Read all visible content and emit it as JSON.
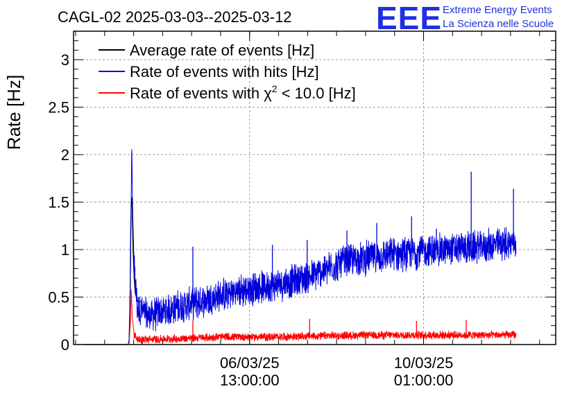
{
  "header": {
    "title": "CAGL-02 2025-03-03--2025-03-12",
    "logo_text": "EEE",
    "logo_line1": "Extreme Energy Events",
    "logo_line2": "La Scienza nelle Scuole"
  },
  "colors": {
    "average": "#000000",
    "hits": "#0000dd",
    "chi2": "#ff0000",
    "logo": "#1e2fe0",
    "grid": "#999999"
  },
  "chart_data": {
    "type": "line",
    "title": "CAGL-02 2025-03-03--2025-03-12",
    "xlabel": "",
    "ylabel": "Rate [Hz]",
    "ylim": [
      0,
      3.3
    ],
    "yticks": [
      {
        "value": 0,
        "label": "0"
      },
      {
        "value": 0.5,
        "label": "0.5"
      },
      {
        "value": 1,
        "label": "1"
      },
      {
        "value": 1.5,
        "label": "1.5"
      },
      {
        "value": 2,
        "label": "2"
      },
      {
        "value": 2.5,
        "label": "2.5"
      },
      {
        "value": 3,
        "label": "3"
      }
    ],
    "x_unit": "days since 2025-03-03 00:00",
    "xlim": [
      0,
      9.7
    ],
    "xticks": [
      {
        "value": 3.5417,
        "line1": "06/03/25",
        "line2": "13:00:00"
      },
      {
        "value": 7.0417,
        "line1": "10/03/25",
        "line2": "01:00:00"
      }
    ],
    "grid": true,
    "legend_position": "top-left",
    "legend": [
      {
        "label": "Average rate of events [Hz]",
        "key": "average"
      },
      {
        "label": "Rate of events with hits [Hz]",
        "key": "hits"
      },
      {
        "label_prefix": "Rate of events with ",
        "label_symbol": "χ",
        "label_sup": "2",
        "label_suffix": " < 10.0 [Hz]",
        "key": "chi2"
      }
    ],
    "series": [
      {
        "name": "Average rate of events [Hz]",
        "key": "average",
        "x": [
          0.2,
          1.1,
          1.12,
          1.14,
          1.15,
          1.16,
          1.17,
          1.18,
          1.19,
          1.2,
          1.22,
          1.24,
          1.27,
          1.3,
          1.35
        ],
        "y": [
          0,
          0,
          0.05,
          0.6,
          1.2,
          1.5,
          1.55,
          1.45,
          1.2,
          0.95,
          0.7,
          0.55,
          0.48,
          0.45,
          0.45
        ]
      },
      {
        "name": "Rate of events with hits [Hz]",
        "key": "hits",
        "x_start": 1.14,
        "x_end": 8.9,
        "baseline_points": [
          [
            0.2,
            0
          ],
          [
            1.1,
            0
          ],
          [
            1.12,
            0.05
          ],
          [
            1.15,
            0.9
          ],
          [
            1.17,
            2.13
          ],
          [
            1.19,
            1.4
          ],
          [
            1.22,
            0.8
          ],
          [
            1.28,
            0.4
          ],
          [
            1.5,
            0.3
          ],
          [
            2.0,
            0.38
          ],
          [
            2.5,
            0.45
          ],
          [
            3.0,
            0.52
          ],
          [
            3.5,
            0.58
          ],
          [
            4.0,
            0.62
          ],
          [
            4.5,
            0.68
          ],
          [
            4.8,
            0.72
          ],
          [
            5.2,
            0.82
          ],
          [
            5.5,
            0.88
          ],
          [
            6.0,
            0.92
          ],
          [
            6.5,
            0.95
          ],
          [
            7.0,
            0.98
          ],
          [
            7.5,
            1.0
          ],
          [
            8.0,
            1.02
          ],
          [
            8.5,
            1.05
          ],
          [
            8.9,
            1.08
          ]
        ],
        "noise_amplitude": 0.2,
        "peaks": [
          {
            "x": 1.17,
            "y": 2.13
          },
          {
            "x": 2.4,
            "y": 1.03
          },
          {
            "x": 4.0,
            "y": 1.05
          },
          {
            "x": 4.7,
            "y": 1.1
          },
          {
            "x": 5.5,
            "y": 1.2
          },
          {
            "x": 6.1,
            "y": 1.28
          },
          {
            "x": 6.8,
            "y": 1.35
          },
          {
            "x": 7.3,
            "y": 1.22
          },
          {
            "x": 8.0,
            "y": 1.82
          },
          {
            "x": 8.85,
            "y": 1.64
          }
        ]
      },
      {
        "name": "Rate of events with χ2 < 10.0 [Hz]",
        "key": "chi2",
        "baseline_points": [
          [
            0.2,
            0
          ],
          [
            1.1,
            0
          ],
          [
            1.12,
            0.02
          ],
          [
            1.15,
            0.3
          ],
          [
            1.16,
            0.58
          ],
          [
            1.18,
            0.3
          ],
          [
            1.22,
            0.1
          ],
          [
            1.3,
            0.05
          ],
          [
            2.0,
            0.06
          ],
          [
            3.0,
            0.08
          ],
          [
            4.0,
            0.08
          ],
          [
            5.0,
            0.09
          ],
          [
            6.0,
            0.1
          ],
          [
            7.0,
            0.1
          ],
          [
            8.0,
            0.1
          ],
          [
            8.9,
            0.1
          ]
        ],
        "noise_amplitude": 0.05,
        "peaks": [
          {
            "x": 1.16,
            "y": 0.58
          },
          {
            "x": 2.4,
            "y": 0.25
          },
          {
            "x": 4.75,
            "y": 0.27
          },
          {
            "x": 6.9,
            "y": 0.25
          },
          {
            "x": 7.9,
            "y": 0.26
          }
        ]
      }
    ]
  }
}
